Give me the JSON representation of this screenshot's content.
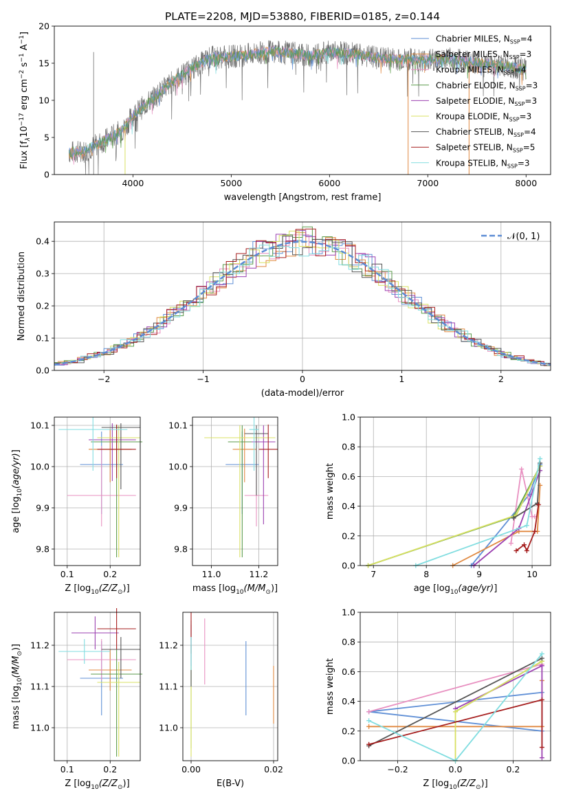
{
  "title": "PLATE=2208, MJD=53880, FIBERID=0185, z=0.144",
  "colors": [
    "#5f8fd6",
    "#e0883f",
    "#e88fc0",
    "#5a9a4a",
    "#9b3fb0",
    "#d8e060",
    "#555555",
    "#a51c1c",
    "#80dde0"
  ],
  "chart_data": [
    {
      "id": "spectrum",
      "type": "line",
      "xlabel": "wavelength [Angstrom, rest frame]",
      "ylabel": "Flux [f",
      "ylabel_math": "λ",
      "ylabel_rest": "10",
      "ylabel_exp": "−17",
      "ylabel_units": " erg cm",
      "ylabel_units_exp": "−2",
      "ylabel_units2": " s",
      "ylabel_units2_exp": "−1",
      "ylabel_tail": " A",
      "ylabel_tail_exp": "−1",
      "ylabel_end": "]",
      "xlim": [
        3200,
        8250
      ],
      "ylim": [
        0,
        20
      ],
      "xticks": [
        4000,
        5000,
        6000,
        7000,
        8000
      ],
      "yticks": [
        0,
        5,
        10,
        15,
        20
      ],
      "continuum": {
        "x": [
          3350,
          3500,
          3700,
          3900,
          4000,
          4200,
          4400,
          4600,
          4800,
          5000,
          5200,
          5400,
          5600,
          5800,
          6000,
          6200,
          6400,
          6600,
          6800,
          7000,
          7200,
          7400,
          7600,
          7800,
          8000
        ],
        "y": [
          3.0,
          3.1,
          4.5,
          6.0,
          8.0,
          10.2,
          12.5,
          14.3,
          15.8,
          15.9,
          16.2,
          16.6,
          16.4,
          16.0,
          16.5,
          16.3,
          15.9,
          15.6,
          15.5,
          15.4,
          15.6,
          15.3,
          14.9,
          14.6,
          14.2
        ]
      },
      "legend": [
        {
          "name": "Chabrier MILES, N",
          "sub": "SSP",
          "tail": "=4"
        },
        {
          "name": "Salpeter MILES, N",
          "sub": "SSP",
          "tail": "=3"
        },
        {
          "name": "Kroupa MILES, N",
          "sub": "SSP",
          "tail": "=4"
        },
        {
          "name": "Chabrier ELODIE, N",
          "sub": "SSP",
          "tail": "=3"
        },
        {
          "name": "Salpeter ELODIE, N",
          "sub": "SSP",
          "tail": "=3"
        },
        {
          "name": "Kroupa ELODIE, N",
          "sub": "SSP",
          "tail": "=3"
        },
        {
          "name": "Chabrier STELIB, N",
          "sub": "SSP",
          "tail": "=4"
        },
        {
          "name": "Salpeter STELIB, N",
          "sub": "SSP",
          "tail": "=5"
        },
        {
          "name": "Kroupa STELIB, N",
          "sub": "SSP",
          "tail": "=3"
        }
      ]
    },
    {
      "id": "residuals",
      "type": "line",
      "xlabel": "(data-model)/error",
      "ylabel": "Normed distribution",
      "xlim": [
        -2.5,
        2.5
      ],
      "ylim": [
        0,
        0.46
      ],
      "xticks": [
        -2,
        -1,
        0,
        1,
        2
      ],
      "yticks": [
        0.0,
        0.1,
        0.2,
        0.3,
        0.4
      ],
      "legend": "𝒩(0, 1)"
    },
    {
      "id": "age_vs_Z",
      "type": "scatter",
      "xlabel": "Z [log",
      "xlabel_sub": "10",
      "xlabel_math": "(Z/Z",
      "xlabel_sun": "⊙",
      "xlabel_end": ")]",
      "ylabel": "age  [log",
      "ylabel_sub": "10",
      "ylabel_math": "(age/yr)",
      "ylabel_end": "]",
      "xlim": [
        0.07,
        0.27
      ],
      "ylim": [
        9.76,
        10.12
      ],
      "xticks": [
        0.1,
        0.2
      ],
      "yticks": [
        9.8,
        9.9,
        10.0,
        10.1
      ],
      "points": [
        {
          "x": 0.18,
          "y": 10.005,
          "xerr": 0.05,
          "yerr": [
            0.12,
            0.08
          ]
        },
        {
          "x": 0.2,
          "y": 10.042,
          "xerr": 0.05,
          "yerr": [
            0.08,
            0.05
          ]
        },
        {
          "x": 0.18,
          "y": 9.93,
          "xerr": 0.08,
          "yerr": [
            0.075,
            0.12
          ]
        },
        {
          "x": 0.215,
          "y": 10.06,
          "xerr": 0.06,
          "yerr": [
            0.28,
            0.04
          ]
        },
        {
          "x": 0.205,
          "y": 10.065,
          "xerr": 0.055,
          "yerr": [
            0.1,
            0.04
          ]
        },
        {
          "x": 0.22,
          "y": 10.07,
          "xerr": 0.05,
          "yerr": [
            0.29,
            0.03
          ]
        },
        {
          "x": 0.225,
          "y": 10.095,
          "xerr": 0.045,
          "yerr": [
            0.15,
            0.01
          ]
        },
        {
          "x": 0.215,
          "y": 10.042,
          "xerr": 0.045,
          "yerr": [
            0.07,
            0.06
          ]
        },
        {
          "x": 0.16,
          "y": 10.09,
          "xerr": 0.08,
          "yerr": [
            0.1,
            0.03
          ]
        }
      ]
    },
    {
      "id": "age_vs_mass",
      "type": "scatter",
      "xlabel": "mass [log",
      "xlabel_sub": "10",
      "xlabel_math": "(M/M",
      "xlabel_sun": "⊙",
      "xlabel_end": ")]",
      "xlim": [
        10.92,
        11.28
      ],
      "ylim": [
        9.76,
        10.12
      ],
      "xticks": [
        11.0,
        11.2
      ],
      "yticks": [
        9.8,
        9.9,
        10.0,
        10.1
      ],
      "points": [
        {
          "x": 11.13,
          "y": 10.005,
          "xerr": 0.07,
          "yerr": [
            0.12,
            0.08
          ]
        },
        {
          "x": 11.14,
          "y": 10.042,
          "xerr": 0.05,
          "yerr": [
            0.08,
            0.05
          ]
        },
        {
          "x": 11.19,
          "y": 9.93,
          "xerr": 0.05,
          "yerr": [
            0.075,
            0.12
          ]
        },
        {
          "x": 11.13,
          "y": 10.06,
          "xerr": 0.06,
          "yerr": [
            0.28,
            0.04
          ]
        },
        {
          "x": 11.22,
          "y": 10.06,
          "xerr": 0.05,
          "yerr": [
            0.2,
            0.04
          ]
        },
        {
          "x": 11.12,
          "y": 10.07,
          "xerr": 0.15,
          "yerr": [
            0.29,
            0.03
          ]
        },
        {
          "x": 11.19,
          "y": 10.08,
          "xerr": 0.05,
          "yerr": [
            0.15,
            0.02
          ]
        },
        {
          "x": 11.24,
          "y": 10.042,
          "xerr": 0.04,
          "yerr": [
            0.07,
            0.06
          ]
        },
        {
          "x": 11.18,
          "y": 10.09,
          "xerr": 0.02,
          "yerr": [
            0.1,
            0.03
          ]
        }
      ]
    },
    {
      "id": "mass_weight_vs_age",
      "type": "line",
      "xlabel": "age  [log",
      "xlabel_sub": "10",
      "xlabel_math": "(age/yr)",
      "xlabel_end": "]",
      "ylabel": "mass weight",
      "xlim": [
        6.75,
        10.35
      ],
      "ylim": [
        0,
        1
      ],
      "xticks": [
        7,
        8,
        9,
        10
      ],
      "yticks": [
        0.0,
        0.2,
        0.4,
        0.6,
        0.8,
        1.0
      ],
      "series": [
        {
          "x": [
            8.85,
            9.95,
            10.15
          ],
          "y": [
            0.0,
            0.48,
            0.68
          ]
        },
        {
          "x": [
            8.5,
            9.75,
            10.1,
            10.15
          ],
          "y": [
            0.0,
            0.23,
            0.23,
            0.54
          ]
        },
        {
          "x": [
            9.6,
            9.8,
            10.0,
            10.05
          ],
          "y": [
            0.15,
            0.65,
            0.33,
            0.33
          ]
        },
        {
          "x": [
            6.9,
            9.65,
            10.15
          ],
          "y": [
            0.0,
            0.33,
            0.67
          ]
        },
        {
          "x": [
            8.9,
            9.75,
            10.15
          ],
          "y": [
            0.0,
            0.25,
            0.64
          ]
        },
        {
          "x": [
            6.9,
            9.7,
            10.15
          ],
          "y": [
            0.0,
            0.34,
            0.67
          ]
        },
        {
          "x": [
            9.65,
            10.1,
            10.15
          ],
          "y": [
            0.32,
            0.42,
            0.69
          ]
        },
        {
          "x": [
            9.7,
            9.85,
            9.9,
            10.05,
            10.12
          ],
          "y": [
            0.1,
            0.14,
            0.1,
            0.23,
            0.41
          ]
        },
        {
          "x": [
            7.8,
            9.9,
            10.15
          ],
          "y": [
            0.0,
            0.27,
            0.72
          ]
        }
      ]
    },
    {
      "id": "mass_vs_Z",
      "type": "scatter",
      "xlabel": "Z [log",
      "xlabel_sub": "10",
      "xlabel_math": "(Z/Z",
      "xlabel_sun": "⊙",
      "xlabel_end": ")]",
      "ylabel": "mass [log",
      "ylabel_sub": "10",
      "ylabel_math": "(M/M",
      "ylabel_sun": "⊙",
      "ylabel_end": ")]",
      "xlim": [
        0.07,
        0.27
      ],
      "ylim": [
        10.92,
        11.28
      ],
      "xticks": [
        0.1,
        0.2
      ],
      "yticks": [
        11.0,
        11.1,
        11.2
      ],
      "points": [
        {
          "x": 0.18,
          "y": 11.12,
          "xerr": 0.05,
          "yerr": [
            0.09,
            0.09
          ]
        },
        {
          "x": 0.2,
          "y": 11.14,
          "xerr": 0.05,
          "yerr": [
            0.05,
            0.05
          ]
        },
        {
          "x": 0.18,
          "y": 11.165,
          "xerr": 0.08,
          "yerr": [
            0.05,
            0.05
          ]
        },
        {
          "x": 0.215,
          "y": 11.13,
          "xerr": 0.06,
          "yerr": [
            0.2,
            0.06
          ]
        },
        {
          "x": 0.165,
          "y": 11.23,
          "xerr": 0.055,
          "yerr": [
            0.04,
            0.04
          ]
        },
        {
          "x": 0.22,
          "y": 11.11,
          "xerr": 0.05,
          "yerr": [
            0.18,
            0.05
          ]
        },
        {
          "x": 0.225,
          "y": 11.19,
          "xerr": 0.045,
          "yerr": [
            0.07,
            0.03
          ]
        },
        {
          "x": 0.215,
          "y": 11.24,
          "xerr": 0.045,
          "yerr": [
            0.05,
            0.05
          ]
        },
        {
          "x": 0.14,
          "y": 11.185,
          "xerr": 0.06,
          "yerr": [
            0.03,
            0.03
          ]
        }
      ]
    },
    {
      "id": "mass_vs_ebv",
      "type": "scatter",
      "xlabel": "E(B-V)",
      "xlim": [
        -0.002,
        0.021
      ],
      "ylim": [
        10.92,
        11.28
      ],
      "xticks": [
        0.0,
        0.02
      ],
      "xticklabels": [
        "0.00",
        "0.02"
      ],
      "yticks": [
        11.0,
        11.1,
        11.2
      ],
      "points": [
        {
          "x": 0.0133,
          "y": 11.12,
          "xerr": 0,
          "yerr": [
            0.09,
            0.09
          ]
        },
        {
          "x": 0.02,
          "y": 11.08,
          "xerr": 0,
          "yerr": [
            0.07,
            0.07
          ]
        },
        {
          "x": 0.0033,
          "y": 11.185,
          "xerr": 0,
          "yerr": [
            0.08,
            0.08
          ]
        },
        {
          "x": 0.0,
          "y": 11.13,
          "xerr": 0,
          "yerr": [
            0.18,
            0.07
          ]
        },
        {
          "x": 0.0,
          "y": 11.2,
          "xerr": 0,
          "yerr": [
            0.05,
            0.05
          ]
        },
        {
          "x": 0.0,
          "y": 11.1,
          "xerr": 0,
          "yerr": [
            0.17,
            0.05
          ]
        },
        {
          "x": 0.0,
          "y": 11.2,
          "xerr": 0,
          "yerr": [
            0.1,
            0.06
          ]
        },
        {
          "x": 0.0,
          "y": 11.24,
          "xerr": 0,
          "yerr": [
            0.06,
            0.04
          ]
        },
        {
          "x": 0.0,
          "y": 11.18,
          "xerr": 0,
          "yerr": [
            0.04,
            0.04
          ]
        }
      ]
    },
    {
      "id": "mass_weight_vs_Z",
      "type": "line",
      "xlabel": "Z [log",
      "xlabel_sub": "10",
      "xlabel_math": "(Z/Z",
      "xlabel_sun": "⊙",
      "xlabel_end": ")]",
      "ylabel": "mass weight",
      "xlim": [
        -0.33,
        0.33
      ],
      "ylim": [
        0,
        1
      ],
      "xticks": [
        -0.2,
        0.0,
        0.2
      ],
      "xticklabels": [
        "−0.2",
        "0.0",
        "0.2"
      ],
      "yticks": [
        0.0,
        0.2,
        0.4,
        0.6,
        0.8,
        1.0
      ],
      "series": [
        {
          "x": [
            0.3,
            -0.3,
            0.3
          ],
          "y": [
            0.2,
            0.33,
            0.46
          ]
        },
        {
          "x": [
            -0.3,
            0.3,
            0.3
          ],
          "y": [
            0.23,
            0.23,
            0.54
          ]
        },
        {
          "x": [
            -0.3,
            0.3
          ],
          "y": [
            0.33,
            0.65
          ]
        },
        {
          "x": [
            0.0,
            0.3
          ],
          "y": [
            0.33,
            0.67
          ]
        },
        {
          "x": [
            0.0,
            0.3,
            0.3
          ],
          "y": [
            0.35,
            0.64,
            0.02
          ]
        },
        {
          "x": [
            0.0,
            0.0,
            0.3
          ],
          "y": [
            0.0,
            0.33,
            0.67
          ]
        },
        {
          "x": [
            -0.3,
            0.3
          ],
          "y": [
            0.1,
            0.69
          ]
        },
        {
          "x": [
            -0.3,
            0.3,
            0.3
          ],
          "y": [
            0.11,
            0.41,
            0.09
          ]
        },
        {
          "x": [
            -0.3,
            0.0,
            0.3
          ],
          "y": [
            0.27,
            0.0,
            0.72
          ]
        }
      ]
    }
  ]
}
